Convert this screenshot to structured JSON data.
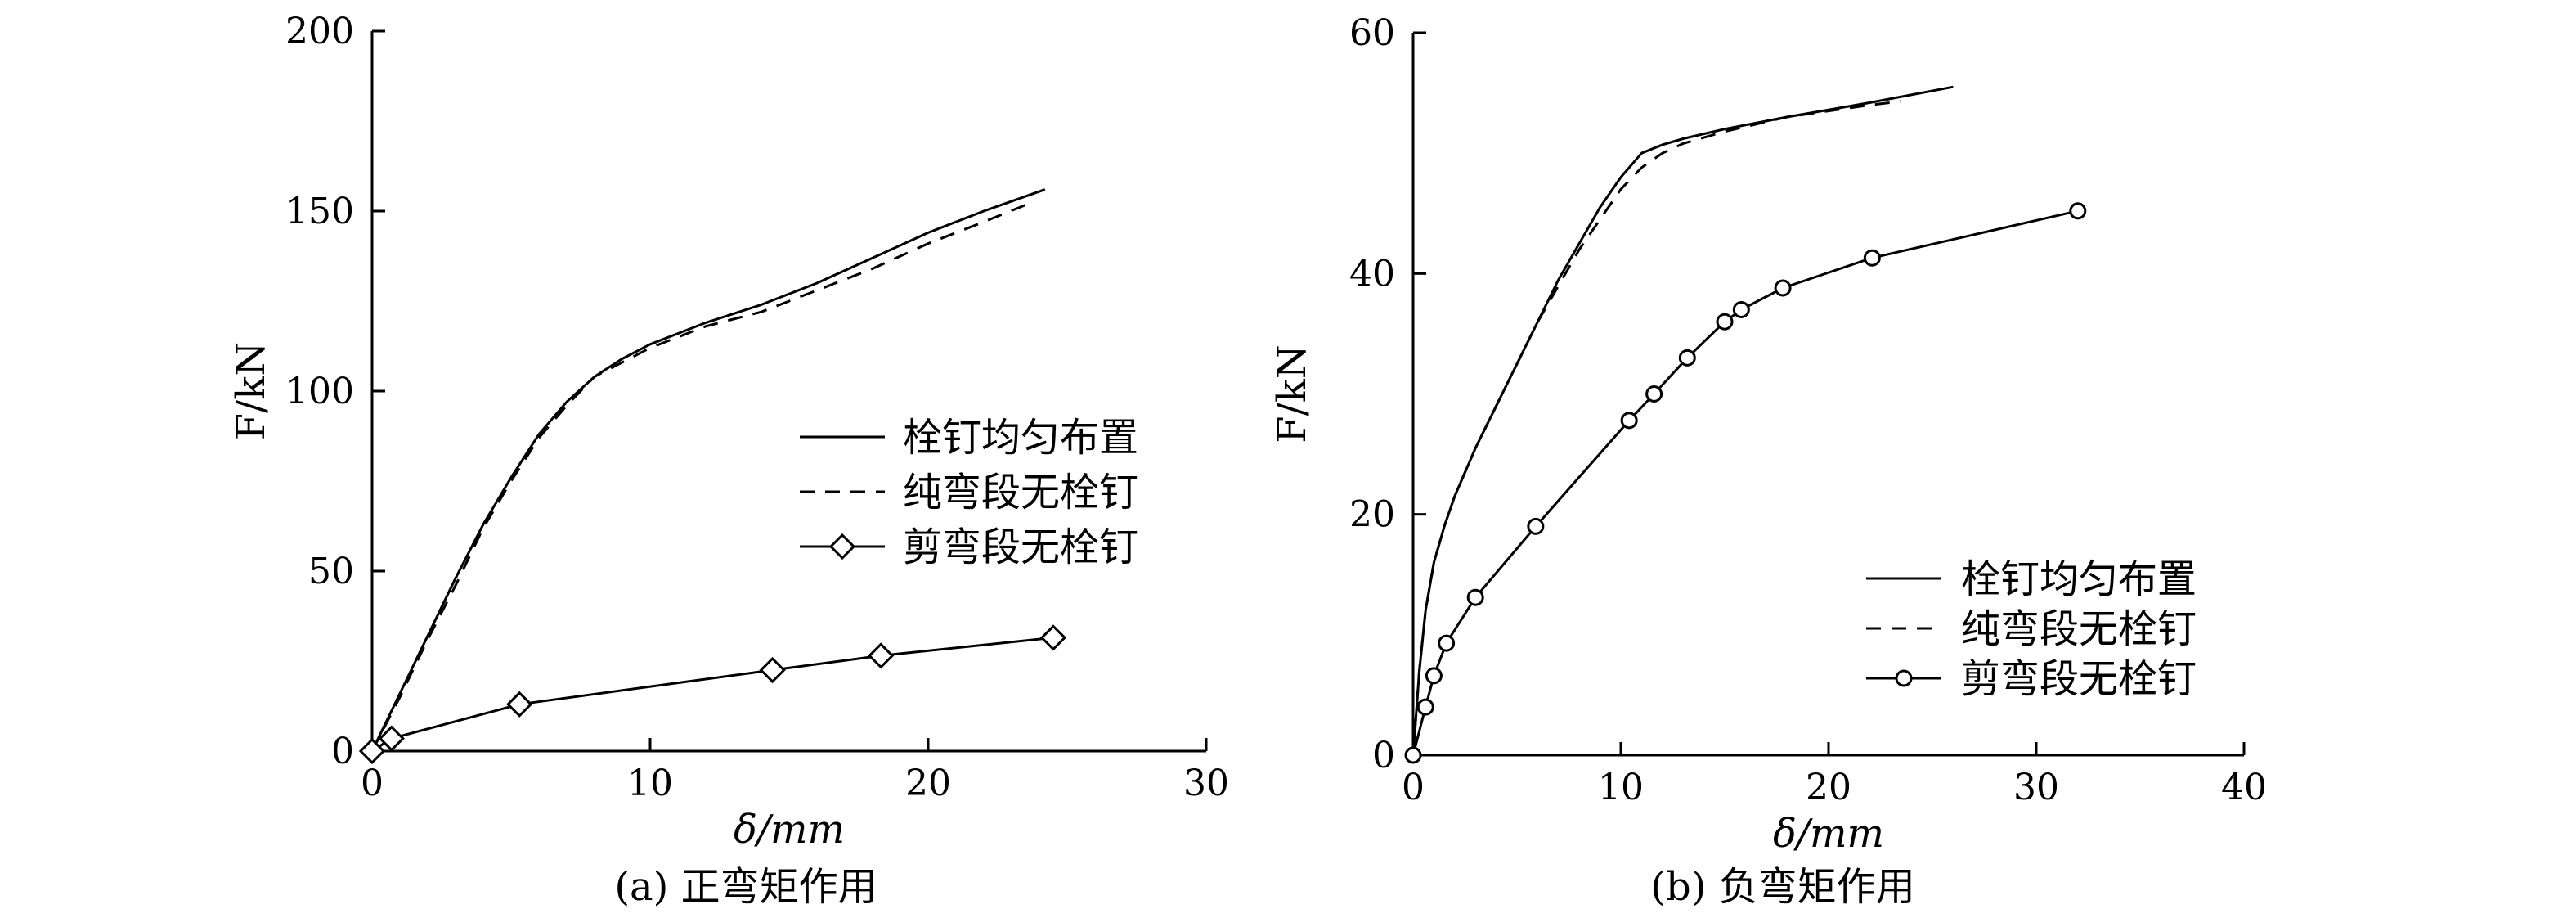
{
  "chart_data": [
    {
      "type": "line",
      "caption": "(a) 正弯矩作用",
      "xlabel": "δ/mm",
      "ylabel": "F/kN",
      "xlim": [
        0,
        30
      ],
      "ylim": [
        0,
        200
      ],
      "x_ticks": [
        "0",
        "10",
        "20",
        "30"
      ],
      "y_ticks": [
        "0",
        "50",
        "100",
        "150",
        "200"
      ],
      "grid": false,
      "legend": "right-middle",
      "series": [
        {
          "name": "栓钉均匀布置",
          "style": "solid",
          "marker": "none",
          "x": [
            0,
            1,
            2,
            3,
            4,
            5,
            6,
            7,
            8,
            9,
            10,
            12,
            14,
            16,
            18,
            20,
            22,
            24.2
          ],
          "y": [
            0,
            16,
            32,
            48,
            63,
            76,
            88,
            97,
            104,
            109,
            113,
            119,
            124,
            130,
            137,
            144,
            150,
            156
          ]
        },
        {
          "name": "纯弯段无栓钉",
          "style": "dashed",
          "marker": "none",
          "x": [
            0,
            1,
            2,
            3,
            4,
            5,
            6,
            7,
            8,
            9,
            10,
            12,
            14,
            16,
            18,
            20,
            22,
            23.6
          ],
          "y": [
            0,
            15,
            31,
            46,
            62,
            75,
            87,
            96,
            104,
            108,
            112,
            118,
            122,
            128,
            134,
            141,
            147,
            152
          ]
        },
        {
          "name": "剪弯段无栓钉",
          "style": "solid",
          "marker": "diamond",
          "x": [
            0,
            0.7,
            5.3,
            14.4,
            18.3,
            24.5
          ],
          "y": [
            0,
            3.5,
            13,
            22.5,
            26.5,
            31.5
          ]
        }
      ]
    },
    {
      "type": "line",
      "caption": "(b) 负弯矩作用",
      "xlabel": "δ/mm",
      "ylabel": "F/kN",
      "xlim": [
        0,
        40
      ],
      "ylim": [
        0,
        60
      ],
      "x_ticks": [
        "0",
        "10",
        "20",
        "30",
        "40"
      ],
      "y_ticks": [
        "0",
        "20",
        "40",
        "60"
      ],
      "grid": false,
      "legend": "bottom-right",
      "series": [
        {
          "name": "栓钉均匀布置",
          "style": "solid",
          "marker": "none",
          "x": [
            0,
            0.3,
            0.6,
            1,
            1.5,
            2,
            3,
            4,
            5,
            6,
            7,
            8,
            9,
            10,
            11,
            12,
            13,
            15,
            18,
            22,
            26
          ],
          "y": [
            0,
            7,
            12,
            16,
            19,
            21.5,
            25.5,
            29,
            32.5,
            36,
            39.5,
            42.5,
            45.5,
            48,
            50,
            50.7,
            51.2,
            52,
            53,
            54.2,
            55.5
          ]
        },
        {
          "name": "纯弯段无栓钉",
          "style": "dashed",
          "marker": "none",
          "x": [
            0,
            0.3,
            0.6,
            1,
            1.5,
            2,
            3,
            4,
            5,
            6,
            7,
            8,
            9,
            10,
            11,
            12,
            13,
            15,
            18,
            22,
            23.5
          ],
          "y": [
            0,
            7,
            12,
            16,
            19,
            21.5,
            25.5,
            29,
            32.5,
            36,
            39,
            42,
            44.5,
            47,
            48.8,
            50,
            50.8,
            51.8,
            53,
            54,
            54.3
          ]
        },
        {
          "name": "剪弯段无栓钉",
          "style": "solid",
          "marker": "circle",
          "x": [
            0,
            0.6,
            1,
            1.6,
            3,
            5.9,
            10.4,
            11.6,
            13.2,
            15,
            15.8,
            17.8,
            22.1,
            32
          ],
          "y": [
            0,
            4,
            6.6,
            9.3,
            13.1,
            19,
            27.8,
            30,
            33,
            36,
            37,
            38.8,
            41.3,
            45.2
          ]
        }
      ]
    }
  ]
}
